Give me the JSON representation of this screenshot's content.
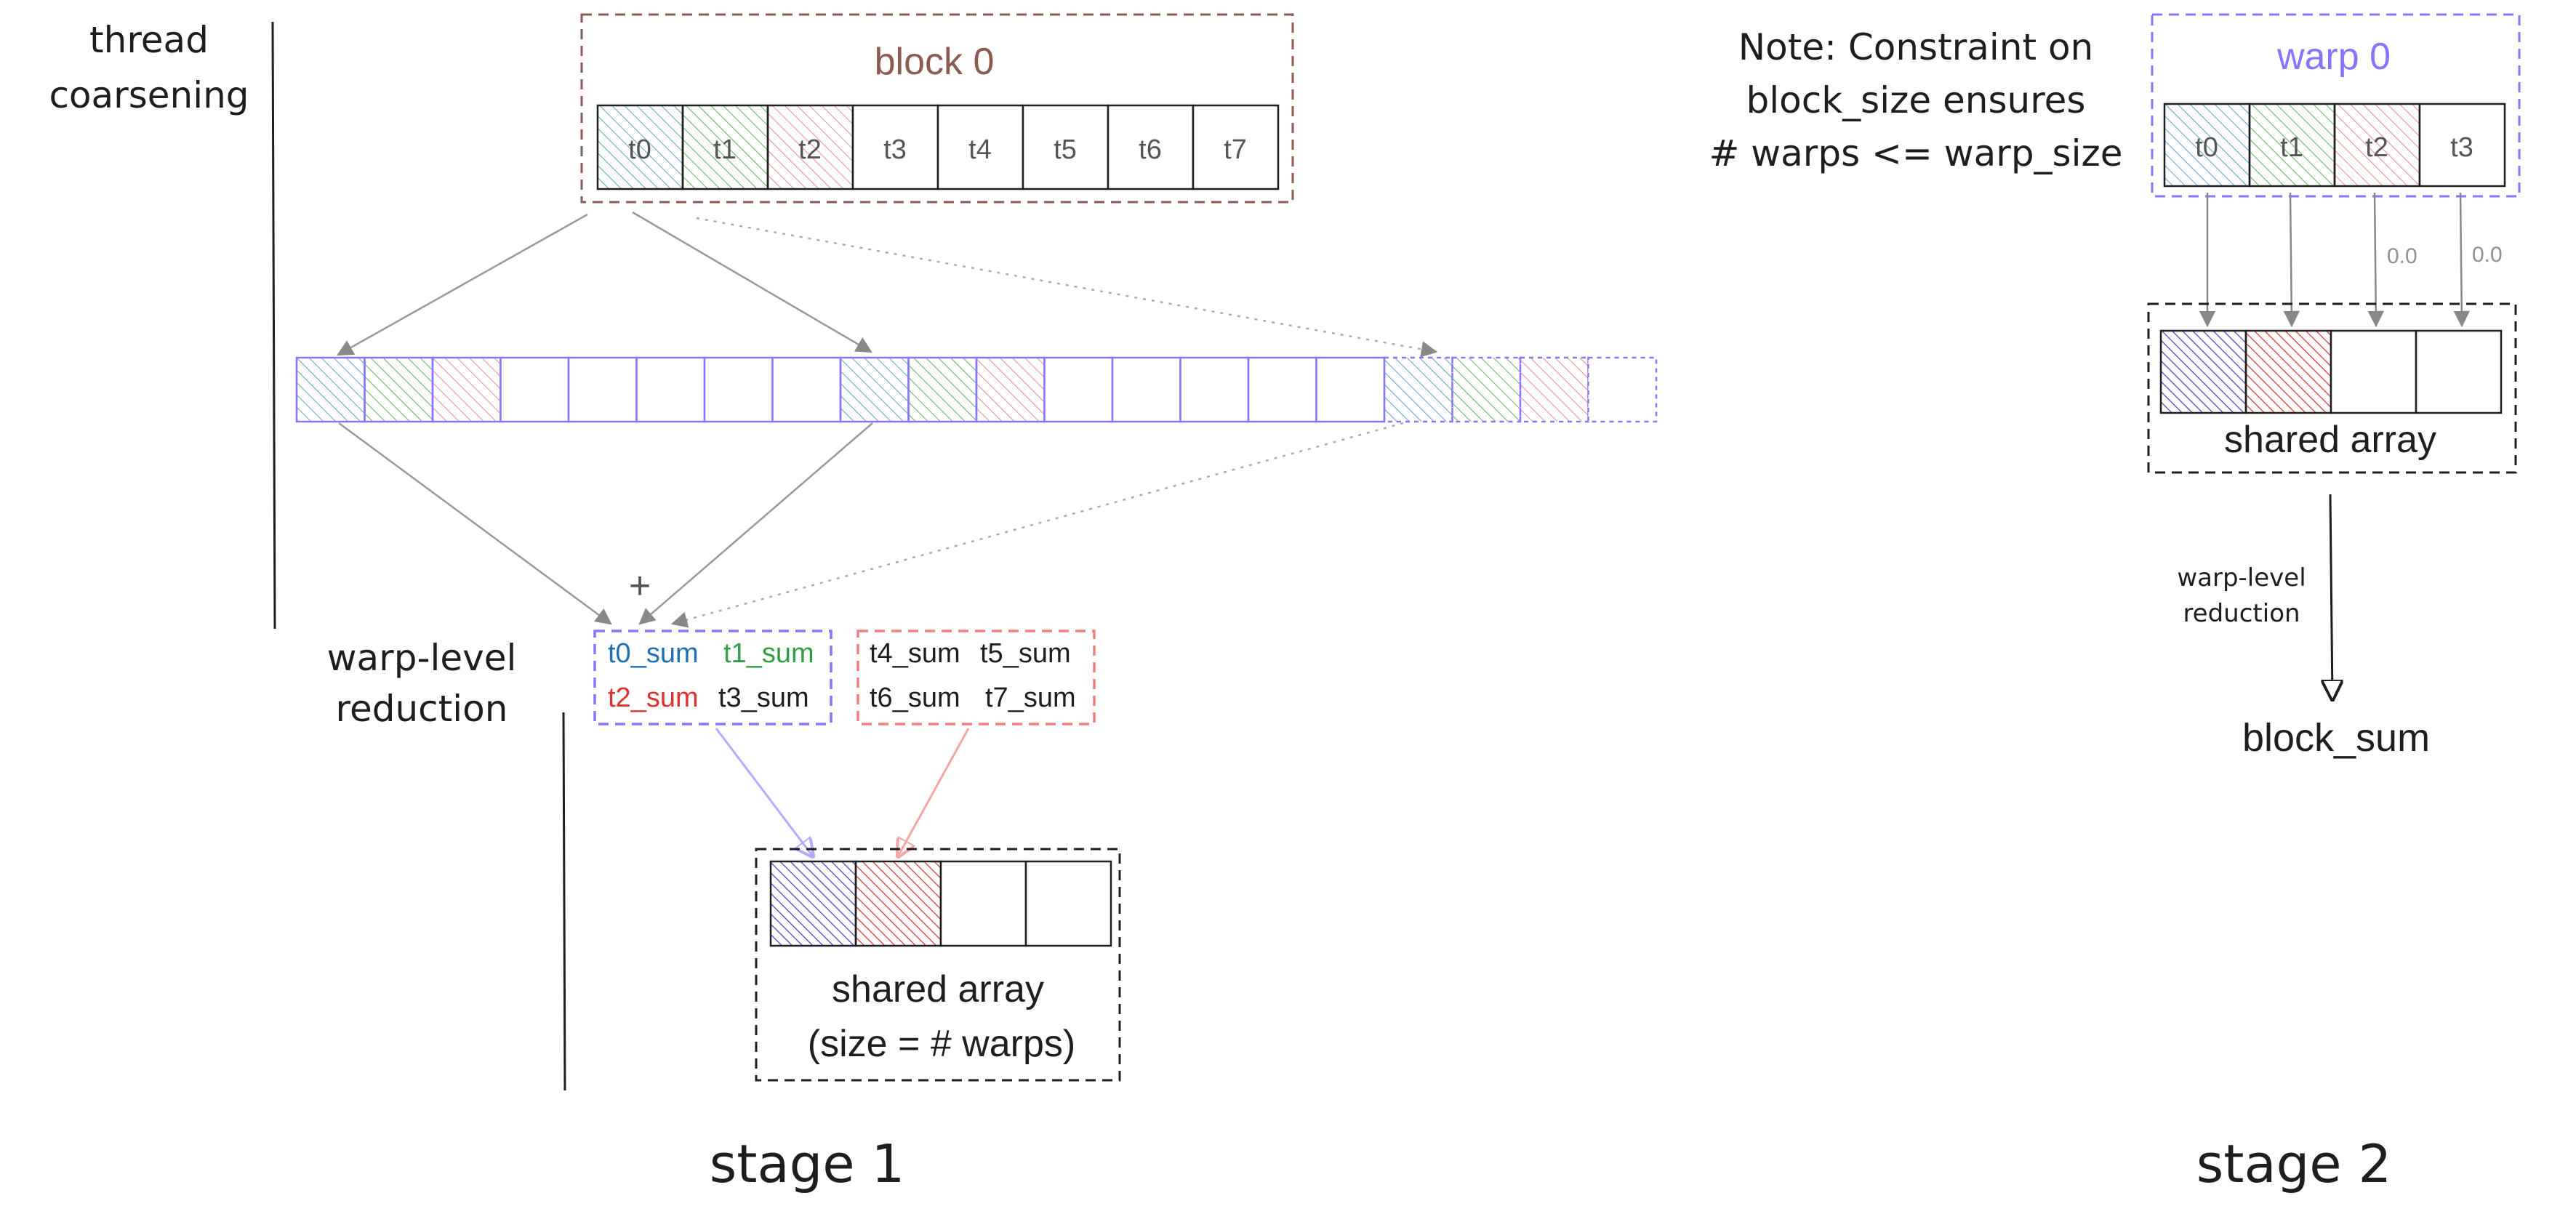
{
  "colors": {
    "blue": "#1f6fb5",
    "green": "#2f9e44",
    "red": "#e03131",
    "purple": "#8b73ff",
    "brown": "#8b5a50",
    "black": "#1e1e1e",
    "gray": "#909090",
    "hatch_blue": "#5aa6c8",
    "hatch_green": "#5cb85c",
    "hatch_red": "#f08a8a",
    "hatch_purple": "#4a3ed0",
    "hatch_red_dark": "#e03131"
  },
  "labels": {
    "thread_coarsening_1": "thread",
    "thread_coarsening_2": "coarsening",
    "warp_level_1": "warp-level",
    "warp_level_2": "reduction",
    "block0_title": "block 0",
    "plus_sign": "+",
    "stage1": "stage 1",
    "stage2": "stage 2",
    "note_1": "Note: Constraint on",
    "note_2": "block_size ensures",
    "note_3": "# warps <= warp_size",
    "warp0_title": "warp 0",
    "shared_array": "shared array",
    "size_note": "(size = # warps)",
    "shared_array_2": "shared array",
    "warp_level_small_1": "warp-level",
    "warp_level_small_2": "reduction",
    "block_sum": "block_sum",
    "zero_a": "0.0",
    "zero_b": "0.0"
  },
  "block0_threads": [
    "t0",
    "t1",
    "t2",
    "t3",
    "t4",
    "t5",
    "t6",
    "t7"
  ],
  "warp0_threads": [
    "t0",
    "t1",
    "t2",
    "t3"
  ],
  "warp_sums_a": [
    "t0_sum",
    "t1_sum",
    "t2_sum",
    "t3_sum"
  ],
  "warp_sums_b": [
    "t4_sum",
    "t5_sum",
    "t6_sum",
    "t7_sum"
  ]
}
